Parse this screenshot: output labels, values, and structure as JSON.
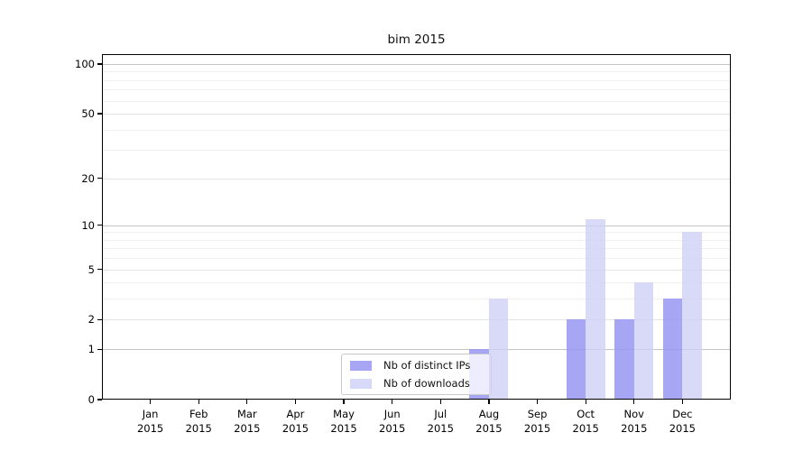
{
  "title": "bim 2015",
  "chart_data": {
    "type": "bar",
    "title": "bim 2015",
    "y_scale": "log10(1+x)",
    "grid": true,
    "legend_position": "inside-bottom-center",
    "year": "2015",
    "months": [
      "Jan",
      "Feb",
      "Mar",
      "Apr",
      "May",
      "Jun",
      "Jul",
      "Aug",
      "Sep",
      "Oct",
      "Nov",
      "Dec"
    ],
    "series": [
      {
        "name": "Nb of distinct IPs",
        "color": "#a6a6f5",
        "fill_rgba": "rgba(150,150,243,0.85)",
        "values": [
          0,
          0,
          0,
          0,
          0,
          0,
          0,
          1,
          0,
          2,
          2,
          3
        ]
      },
      {
        "name": "Nb of downloads",
        "color": "#d8d8f8",
        "fill_rgba": "rgba(206,206,246,0.78)",
        "values": [
          0,
          0,
          0,
          0,
          0,
          0,
          0,
          3,
          0,
          11,
          4,
          9
        ]
      }
    ],
    "y_ticks": [
      0,
      1,
      2,
      5,
      10,
      20,
      50,
      100
    ],
    "y_strong_gridlines": [
      1,
      10,
      100
    ],
    "y_minor_ticks": [
      3,
      4,
      6,
      7,
      8,
      9,
      30,
      40,
      60,
      70,
      80,
      90
    ],
    "ylim": [
      0,
      115
    ],
    "colors": {
      "grid_strong": "#c4c4c4",
      "grid_major": "#e3e3e3",
      "grid_minor": "#f0f0f0",
      "axis": "#000000"
    }
  }
}
